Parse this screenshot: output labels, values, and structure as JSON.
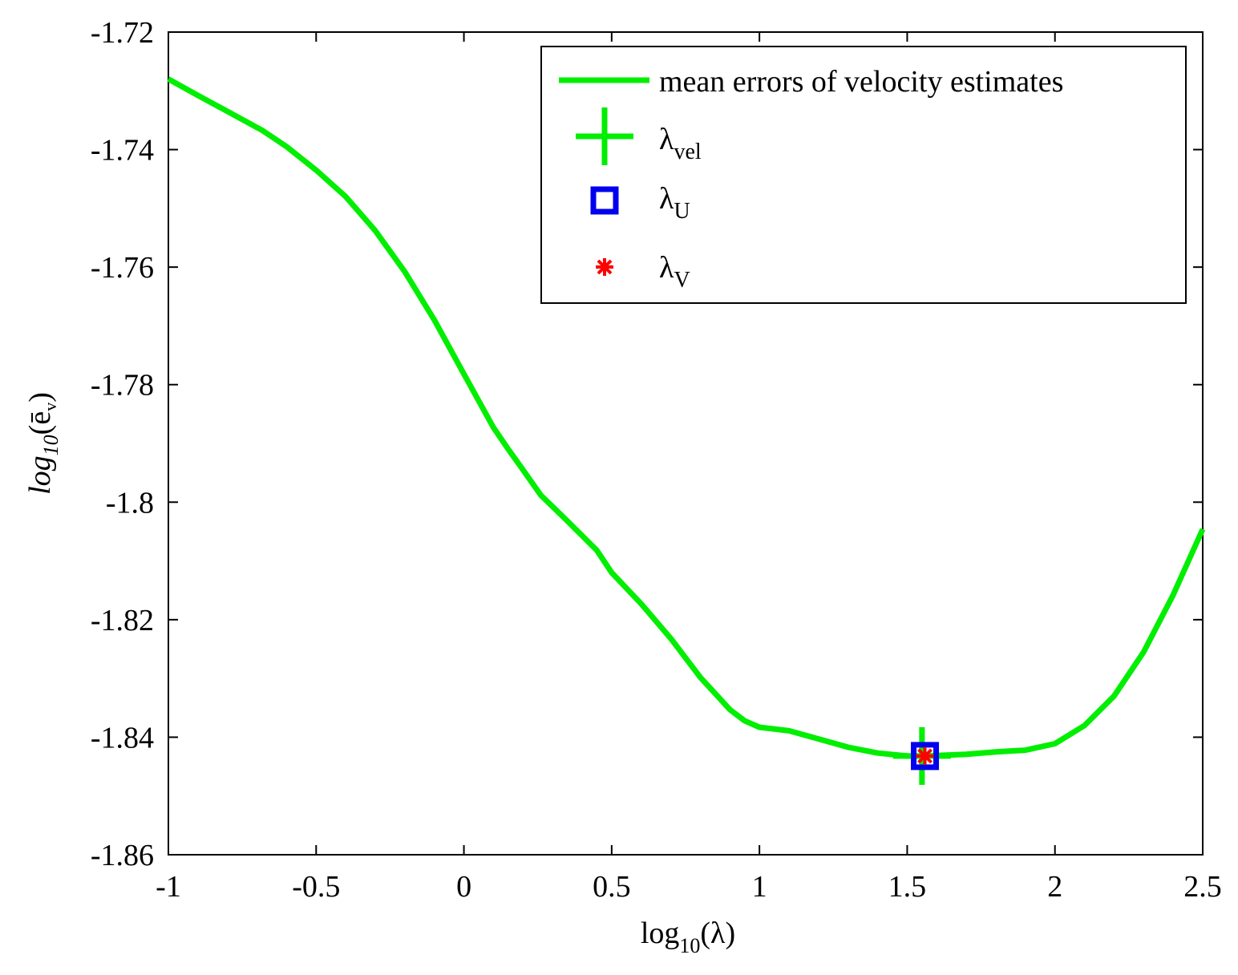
{
  "chart_data": {
    "type": "line",
    "xlabel": {
      "base": "log",
      "sub": "10",
      "arg": "(λ)"
    },
    "ylabel": {
      "base": "log",
      "sub": "10",
      "open": "(",
      "sym": "ē",
      "symsub": "v",
      "close": ")"
    },
    "xlim": [
      -1,
      2.5
    ],
    "ylim": [
      -1.86,
      -1.72
    ],
    "xticks": [
      -1,
      -0.5,
      0,
      0.5,
      1,
      1.5,
      2,
      2.5
    ],
    "xtick_labels": [
      "-1",
      "-0.5",
      "0",
      "0.5",
      "1",
      "1.5",
      "2",
      "2.5"
    ],
    "yticks": [
      -1.72,
      -1.74,
      -1.76,
      -1.78,
      -1.8,
      -1.82,
      -1.84,
      -1.86
    ],
    "ytick_labels": [
      "-1.72",
      "-1.74",
      "-1.76",
      "-1.78",
      "-1.8",
      "-1.82",
      "-1.84",
      "-1.86"
    ],
    "grid": false,
    "legend_position": "top-right",
    "series": [
      {
        "name": "mean errors of velocity estimates",
        "color": "#00ee00",
        "x": [
          -1,
          -0.9,
          -0.8,
          -0.68,
          -0.6,
          -0.5,
          -0.4,
          -0.3,
          -0.2,
          -0.1,
          0,
          0.1,
          0.15,
          0.2,
          0.26,
          0.35,
          0.45,
          0.5,
          0.6,
          0.7,
          0.8,
          0.9,
          0.95,
          1.0,
          1.1,
          1.2,
          1.3,
          1.4,
          1.5,
          1.56,
          1.7,
          1.8,
          1.9,
          2.0,
          2.1,
          2.2,
          2.3,
          2.4,
          2.5
        ],
        "y": [
          -1.728,
          -1.7308,
          -1.7335,
          -1.7368,
          -1.7395,
          -1.7435,
          -1.748,
          -1.7538,
          -1.7608,
          -1.769,
          -1.7782,
          -1.7873,
          -1.791,
          -1.7945,
          -1.7988,
          -1.8032,
          -1.8082,
          -1.812,
          -1.8173,
          -1.8232,
          -1.8298,
          -1.8353,
          -1.8372,
          -1.8383,
          -1.8389,
          -1.8403,
          -1.8417,
          -1.8427,
          -1.8432,
          -1.8432,
          -1.8429,
          -1.8425,
          -1.8422,
          -1.8411,
          -1.838,
          -1.833,
          -1.8255,
          -1.8158,
          -1.8046
        ]
      }
    ],
    "markers": [
      {
        "name": "λvel",
        "label_base": "λ",
        "label_sub": "vel",
        "symbol": "plus",
        "color": "#00ee00",
        "x": 1.55,
        "y": -1.8432
      },
      {
        "name": "λU",
        "label_base": "λ",
        "label_sub": "U",
        "symbol": "square",
        "color": "#0000ee",
        "x": 1.56,
        "y": -1.8432
      },
      {
        "name": "λV",
        "label_base": "λ",
        "label_sub": "V",
        "symbol": "asterisk",
        "color": "#ff0000",
        "x": 1.56,
        "y": -1.8432
      }
    ]
  }
}
